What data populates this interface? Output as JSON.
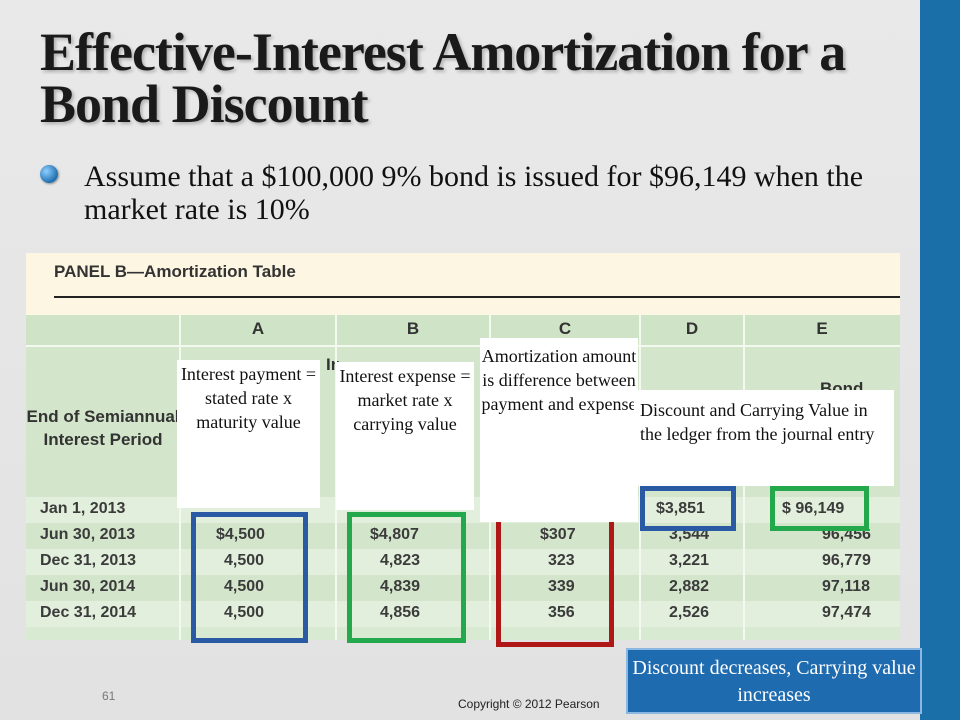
{
  "title": "Effective-Interest Amortization for a Bond Discount",
  "bullet": "Assume that a $100,000 9% bond is issued for $96,149 when the market rate is 10%",
  "panel": {
    "title": "PANEL B—Amortization Table",
    "column_letters": [
      "A",
      "B",
      "C",
      "D",
      "E"
    ],
    "period_header": "End of Semiannual Interest Period",
    "partial_headers": {
      "b": "In",
      "e": "Bond"
    },
    "rows": [
      {
        "period": "Jan 1, 2013",
        "a": "",
        "b": "",
        "c": "",
        "d": "$3,851",
        "e": "$  96,149"
      },
      {
        "period": "Jun 30, 2013",
        "a": "$4,500",
        "b": "$4,807",
        "c": "$307",
        "d": "3,544",
        "e": "96,456"
      },
      {
        "period": "Dec 31, 2013",
        "a": "4,500",
        "b": "4,823",
        "c": "323",
        "d": "3,221",
        "e": "96,779"
      },
      {
        "period": "Jun 30, 2014",
        "a": "4,500",
        "b": "4,839",
        "c": "339",
        "d": "2,882",
        "e": "97,118"
      },
      {
        "period": "Dec 31, 2014",
        "a": "4,500",
        "b": "4,856",
        "c": "356",
        "d": "2,526",
        "e": "97,474"
      }
    ]
  },
  "notes": {
    "interest_payment": "Interest payment = stated rate x maturity value",
    "interest_expense": "Interest expense = market rate x carrying value",
    "amortization": "Amortization amount is difference between payment and expense",
    "ledger": "Discount and Carrying Value in the ledger from the journal entry"
  },
  "callout": "Discount decreases, Carrying value increases",
  "page_number": "61",
  "copyright": "Copyright © 2012 Pearson",
  "colors": {
    "accent_blue": "#1b6fa8",
    "box_blue": "#2a5aa3",
    "box_green": "#23a84b",
    "box_red": "#b01818"
  }
}
